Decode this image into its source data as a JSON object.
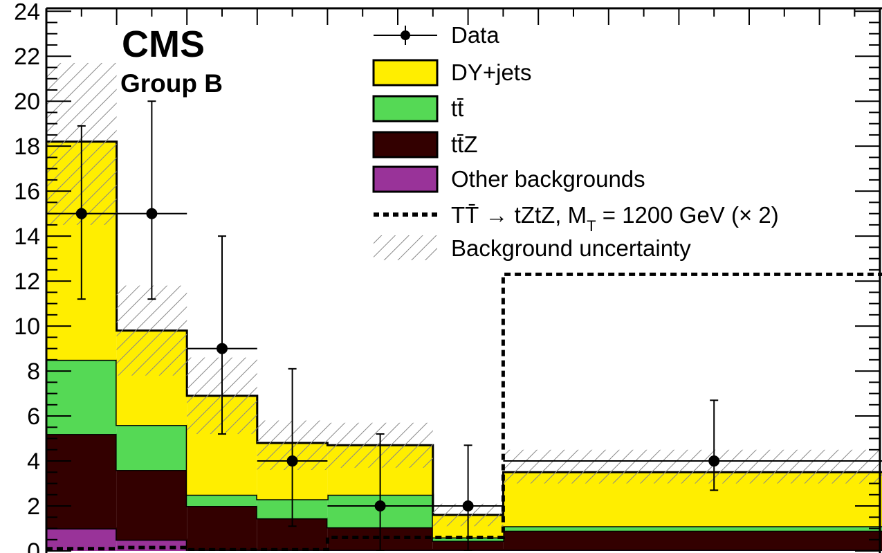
{
  "chart_data": {
    "type": "bar",
    "stacked": true,
    "annotation_main": "CMS",
    "annotation_sub": "Group B",
    "ylim": [
      0,
      24.5
    ],
    "y_ticks": [
      0,
      2,
      4,
      6,
      8,
      10,
      12,
      14,
      16,
      18,
      20,
      22,
      24
    ],
    "bins": [
      {
        "x0": 0,
        "x1": 1
      },
      {
        "x0": 1,
        "x1": 2
      },
      {
        "x0": 2,
        "x1": 3
      },
      {
        "x0": 3,
        "x1": 4
      },
      {
        "x0": 4,
        "x1": 5.5
      },
      {
        "x0": 5.5,
        "x1": 6.5
      },
      {
        "x0": 6.5,
        "x1": 12.5
      }
    ],
    "series": [
      {
        "name": "Other backgrounds",
        "color": "#993399",
        "values": [
          1.0,
          0.5,
          0.05,
          0.05,
          0.05,
          0.05,
          0.05
        ]
      },
      {
        "name": "tt̄Z",
        "color": "#330000",
        "values": [
          4.2,
          3.1,
          1.95,
          1.4,
          1.0,
          0.4,
          0.85
        ]
      },
      {
        "name": "tt̄",
        "color": "#55d955",
        "values": [
          3.3,
          2.0,
          0.5,
          0.85,
          1.45,
          0.15,
          0.2
        ]
      },
      {
        "name": "DY+jets",
        "color": "#ffee00",
        "values": [
          9.7,
          4.2,
          4.4,
          2.5,
          2.2,
          1.0,
          2.4
        ]
      }
    ],
    "uncertainty": {
      "name": "Background uncertainty",
      "low": [
        14.5,
        7.8,
        5.2,
        3.6,
        3.7,
        1.1,
        3.0
      ],
      "high": [
        21.7,
        11.8,
        8.6,
        5.8,
        5.7,
        2.1,
        4.5
      ]
    },
    "signal": {
      "name": "TT̄ → tZtZ, M_T = 1200 GeV (× 2)",
      "values": [
        0.1,
        0.15,
        0.05,
        0.05,
        0.6,
        0.6,
        12.3
      ]
    },
    "data": {
      "name": "Data",
      "points": [
        {
          "x": 0.5,
          "y": 15,
          "xerr": 0.5,
          "ylo": 11.2,
          "yhi": 18.9
        },
        {
          "x": 1.5,
          "y": 15,
          "xerr": 0.5,
          "ylo": 11.2,
          "yhi": 20.0
        },
        {
          "x": 2.5,
          "y": 9,
          "xerr": 0.5,
          "ylo": 5.2,
          "yhi": 14.0
        },
        {
          "x": 3.5,
          "y": 4,
          "xerr": 0.5,
          "ylo": 1.1,
          "yhi": 8.1
        },
        {
          "x": 4.75,
          "y": 2,
          "xerr": 0.75,
          "ylo": 0.0,
          "yhi": 5.2
        },
        {
          "x": 6.0,
          "y": 2,
          "xerr": 0.5,
          "ylo": 0.0,
          "yhi": 4.7
        },
        {
          "x": 9.5,
          "y": 4,
          "xerr": 3.0,
          "ylo": 2.7,
          "yhi": 6.7
        }
      ]
    },
    "legend": [
      {
        "key": "data",
        "label": "Data"
      },
      {
        "key": "dy",
        "label": "DY+jets",
        "color": "#ffee00"
      },
      {
        "key": "tt",
        "label": "tt̄",
        "color": "#55d955"
      },
      {
        "key": "ttz",
        "label": "tt̄Z",
        "color": "#330000"
      },
      {
        "key": "other",
        "label": "Other backgrounds",
        "color": "#993399"
      },
      {
        "key": "signal",
        "label_main": "TT̄ → tZtZ, M",
        "label_sub": "T",
        "label_tail": " = 1200 GeV (× 2)"
      },
      {
        "key": "unc",
        "label": "Background uncertainty"
      }
    ]
  }
}
